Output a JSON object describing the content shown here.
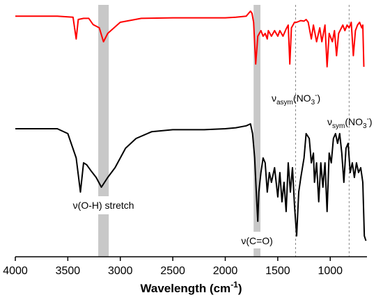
{
  "chart_data": {
    "type": "line",
    "xlabel": "Wavelength (cm",
    "xlabel_superscript": "-1",
    "xlabel_close": ")",
    "ylabel": "",
    "xlim": [
      4000,
      650
    ],
    "x_ticks": [
      4000,
      3500,
      3000,
      2500,
      2000,
      1500,
      1000
    ],
    "grid": false,
    "legend": "none",
    "series": [
      {
        "color": "#ff0000",
        "points": [
          [
            4000,
            0.09
          ],
          [
            3800,
            0.09
          ],
          [
            3600,
            0.09
          ],
          [
            3450,
            0.11
          ],
          [
            3420,
            0.5
          ],
          [
            3400,
            0.15
          ],
          [
            3350,
            0.13
          ],
          [
            3300,
            0.13
          ],
          [
            3260,
            0.24
          ],
          [
            3200,
            0.3
          ],
          [
            3160,
            0.55
          ],
          [
            3120,
            0.4
          ],
          [
            3000,
            0.2
          ],
          [
            2800,
            0.13
          ],
          [
            2500,
            0.12
          ],
          [
            2200,
            0.12
          ],
          [
            2000,
            0.12
          ],
          [
            1900,
            0.11
          ],
          [
            1800,
            0.09
          ],
          [
            1760,
            0.0
          ],
          [
            1745,
            0.04
          ],
          [
            1730,
            0.2
          ],
          [
            1710,
            0.95
          ],
          [
            1700,
            0.7
          ],
          [
            1690,
            0.45
          ],
          [
            1660,
            0.35
          ],
          [
            1640,
            0.45
          ],
          [
            1620,
            0.4
          ],
          [
            1600,
            0.5
          ],
          [
            1590,
            0.35
          ],
          [
            1560,
            0.45
          ],
          [
            1530,
            0.35
          ],
          [
            1500,
            0.45
          ],
          [
            1480,
            0.35
          ],
          [
            1450,
            0.45
          ],
          [
            1420,
            0.32
          ],
          [
            1400,
            0.25
          ],
          [
            1385,
            0.95
          ],
          [
            1370,
            0.3
          ],
          [
            1340,
            0.2
          ],
          [
            1320,
            0.2
          ],
          [
            1280,
            0.17
          ],
          [
            1250,
            0.18
          ],
          [
            1230,
            0.15
          ],
          [
            1210,
            0.2
          ],
          [
            1180,
            0.5
          ],
          [
            1160,
            0.25
          ],
          [
            1130,
            0.55
          ],
          [
            1100,
            0.3
          ],
          [
            1080,
            0.55
          ],
          [
            1050,
            0.25
          ],
          [
            1030,
            1.0
          ],
          [
            1010,
            0.4
          ],
          [
            980,
            0.55
          ],
          [
            960,
            0.35
          ],
          [
            940,
            0.8
          ],
          [
            920,
            0.4
          ],
          [
            880,
            0.25
          ],
          [
            860,
            0.35
          ],
          [
            840,
            0.25
          ],
          [
            820,
            0.3
          ],
          [
            800,
            0.2
          ],
          [
            780,
            0.8
          ],
          [
            760,
            0.35
          ],
          [
            740,
            0.25
          ],
          [
            720,
            0.2
          ],
          [
            700,
            0.3
          ],
          [
            690,
            0.25
          ],
          [
            680,
            1.0
          ]
        ]
      },
      {
        "color": "#000000",
        "points": [
          [
            4000,
            0.05
          ],
          [
            3800,
            0.05
          ],
          [
            3600,
            0.05
          ],
          [
            3500,
            0.1
          ],
          [
            3420,
            0.35
          ],
          [
            3380,
            0.7
          ],
          [
            3350,
            0.4
          ],
          [
            3320,
            0.42
          ],
          [
            3280,
            0.48
          ],
          [
            3230,
            0.55
          ],
          [
            3180,
            0.65
          ],
          [
            3120,
            0.55
          ],
          [
            3050,
            0.45
          ],
          [
            2950,
            0.25
          ],
          [
            2850,
            0.15
          ],
          [
            2700,
            0.08
          ],
          [
            2500,
            0.06
          ],
          [
            2200,
            0.06
          ],
          [
            2000,
            0.05
          ],
          [
            1900,
            0.04
          ],
          [
            1800,
            0.02
          ],
          [
            1760,
            0.0
          ],
          [
            1740,
            0.1
          ],
          [
            1720,
            0.35
          ],
          [
            1700,
            0.8
          ],
          [
            1690,
            1.0
          ],
          [
            1680,
            0.7
          ],
          [
            1660,
            0.5
          ],
          [
            1640,
            0.35
          ],
          [
            1620,
            0.4
          ],
          [
            1600,
            0.7
          ],
          [
            1580,
            0.5
          ],
          [
            1560,
            0.6
          ],
          [
            1530,
            0.45
          ],
          [
            1500,
            0.75
          ],
          [
            1480,
            0.5
          ],
          [
            1460,
            0.8
          ],
          [
            1440,
            0.6
          ],
          [
            1420,
            0.9
          ],
          [
            1400,
            0.4
          ],
          [
            1380,
            0.7
          ],
          [
            1360,
            0.45
          ],
          [
            1340,
            0.85
          ],
          [
            1320,
            1.15
          ],
          [
            1300,
            0.7
          ],
          [
            1280,
            0.55
          ],
          [
            1250,
            0.35
          ],
          [
            1230,
            0.1
          ],
          [
            1200,
            0.15
          ],
          [
            1180,
            0.4
          ],
          [
            1160,
            0.3
          ],
          [
            1150,
            0.6
          ],
          [
            1130,
            0.4
          ],
          [
            1110,
            0.8
          ],
          [
            1090,
            0.4
          ],
          [
            1070,
            0.65
          ],
          [
            1050,
            0.4
          ],
          [
            1030,
            0.9
          ],
          [
            1010,
            0.3
          ],
          [
            990,
            0.4
          ],
          [
            970,
            0.15
          ],
          [
            950,
            0.1
          ],
          [
            930,
            0.2
          ],
          [
            910,
            0.1
          ],
          [
            890,
            0.3
          ],
          [
            870,
            0.6
          ],
          [
            850,
            0.25
          ],
          [
            830,
            0.2
          ],
          [
            810,
            0.5
          ],
          [
            790,
            0.4
          ],
          [
            770,
            0.55
          ],
          [
            750,
            0.4
          ],
          [
            730,
            0.5
          ],
          [
            710,
            0.45
          ],
          [
            690,
            0.6
          ],
          [
            675,
            1.15
          ],
          [
            660,
            1.2
          ]
        ]
      }
    ],
    "annotations": [
      {
        "text": "ν(O-H) stretch"
      },
      {
        "text": "ν(C=O)"
      },
      {
        "text": "ν",
        "sub": "asym",
        "main": "(NO",
        "subscript": "3",
        "superscript": "-",
        "close": ")"
      },
      {
        "text": "ν",
        "sub": "sym",
        "main": "(NO",
        "subscript": "3",
        "superscript": "-",
        "close": ")"
      }
    ],
    "highlight_bands": [
      {
        "x_range": [
          3210,
          3110
        ],
        "color": "#c8c8c8"
      },
      {
        "x_range": [
          1730,
          1665
        ],
        "color": "#c8c8c8"
      }
    ],
    "reference_lines": [
      {
        "x": 1330,
        "style": "dashed",
        "color": "#888888"
      },
      {
        "x": 820,
        "style": "dashed",
        "color": "#888888"
      }
    ]
  }
}
